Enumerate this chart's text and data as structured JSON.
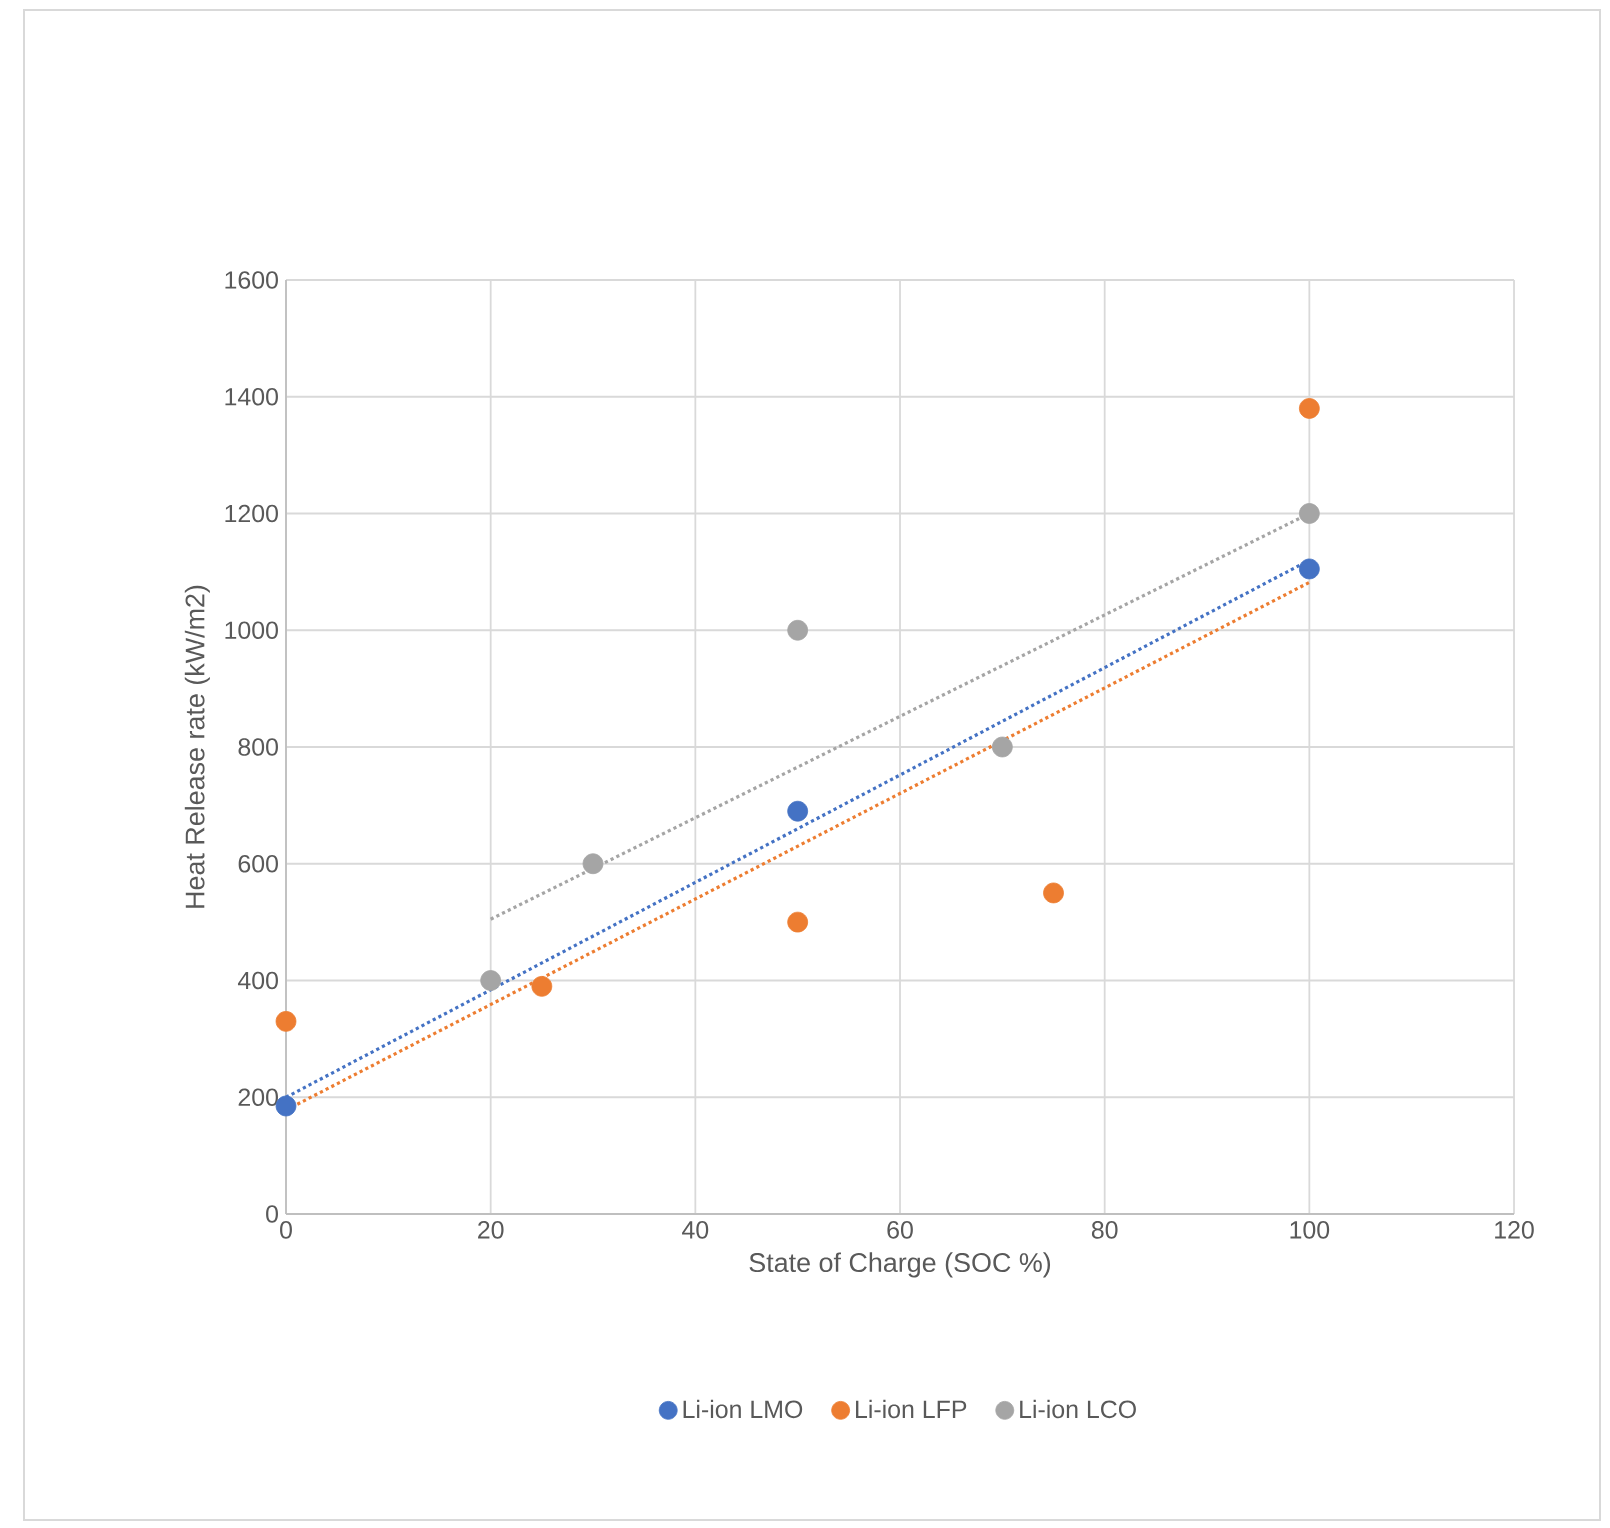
{
  "chart_data": {
    "type": "scatter",
    "xlabel": "State of Charge (SOC %)",
    "ylabel": "Heat Release rate (kW/m2)",
    "xlim": [
      0,
      120
    ],
    "ylim": [
      0,
      1600
    ],
    "xticks": [
      0,
      20,
      40,
      60,
      80,
      100,
      120
    ],
    "yticks": [
      0,
      200,
      400,
      600,
      800,
      1000,
      1200,
      1400,
      1600
    ],
    "grid": true,
    "legend": "bottom",
    "marker": "circle",
    "series": [
      {
        "name": "Li-ion LMO",
        "color": "#4472c4",
        "x": [
          0,
          50,
          100
        ],
        "values": [
          185,
          690,
          1105
        ]
      },
      {
        "name": "Li-ion LFP",
        "color": "#ed7d31",
        "x": [
          0,
          25,
          50,
          75,
          100
        ],
        "values": [
          330,
          390,
          500,
          550,
          1380
        ]
      },
      {
        "name": "Li-ion LCO",
        "color": "#a5a5a5",
        "x": [
          20,
          30,
          50,
          70,
          100
        ],
        "values": [
          400,
          600,
          1000,
          800,
          1200
        ]
      },
      {
        "type": "line",
        "color": "#4472c4",
        "line_style": "dotted",
        "marker": "none",
        "x": [
          0,
          100
        ],
        "values": [
          200,
          1120
        ]
      },
      {
        "type": "line",
        "color": "#ed7d31",
        "line_style": "dotted",
        "marker": "none",
        "x": [
          0,
          100
        ],
        "values": [
          178,
          1082
        ]
      },
      {
        "type": "line",
        "color": "#a5a5a5",
        "line_style": "dotted",
        "marker": "none",
        "x": [
          20,
          100
        ],
        "values": [
          505,
          1200
        ]
      }
    ]
  }
}
